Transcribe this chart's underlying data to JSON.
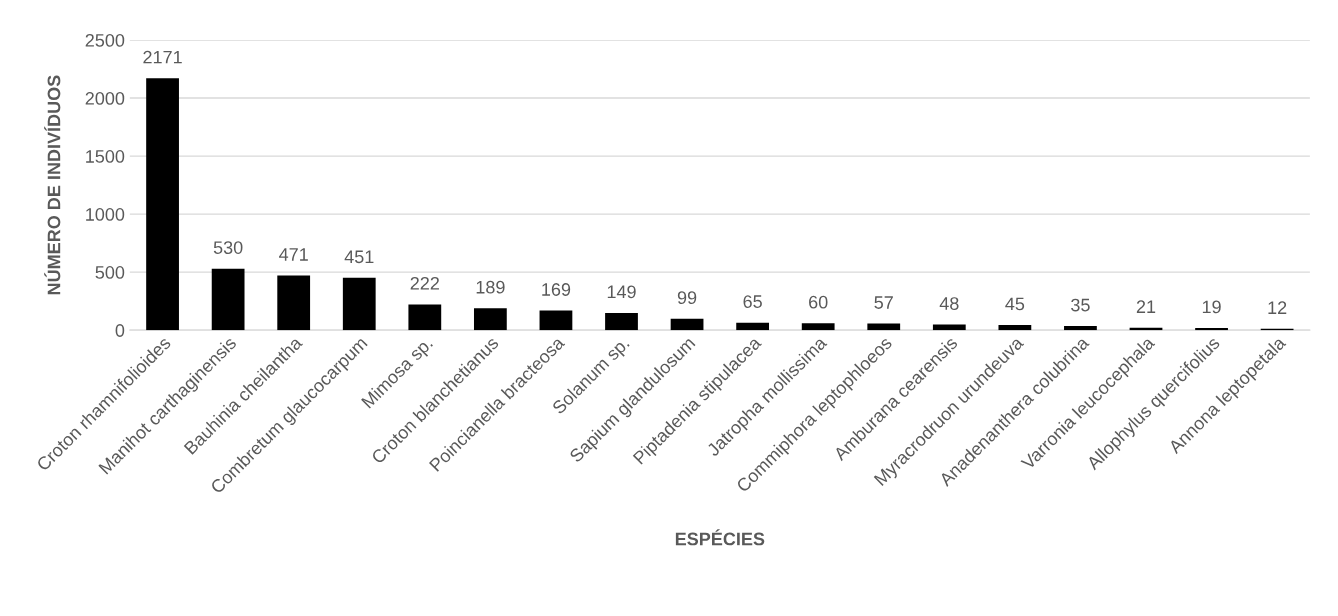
{
  "chart_data": {
    "type": "bar",
    "xlabel": "ESPÉCIES",
    "ylabel": "NÚMERO DE INDIVÍDUOS",
    "categories": [
      "Croton rhamnifolioides",
      "Manihot carthaginensis",
      "Bauhinia cheilantha",
      "Combretum glaucocarpum",
      "Mimosa sp.",
      "Croton blanchetianus",
      "Poincianella bracteosa",
      "Solanum sp.",
      "Sapium glandulosum",
      "Piptadenia stipulacea",
      "Jatropha mollissima",
      "Commiphora leptophloeos",
      "Amburana cearensis",
      "Myracrodruon urundeuva",
      "Anadenanthera colubrina",
      "Varronia leucocephala",
      "Allophylus quercifolius",
      "Annona leptopetala"
    ],
    "values": [
      2171,
      530,
      471,
      451,
      222,
      189,
      169,
      149,
      99,
      65,
      60,
      57,
      48,
      45,
      35,
      21,
      19,
      12
    ],
    "color": "#000000",
    "ylim": [
      0,
      2500
    ],
    "yticks": [
      0,
      500,
      1000,
      1500,
      2000,
      2500
    ],
    "grid": "y",
    "data_labels": true,
    "legend": false
  }
}
